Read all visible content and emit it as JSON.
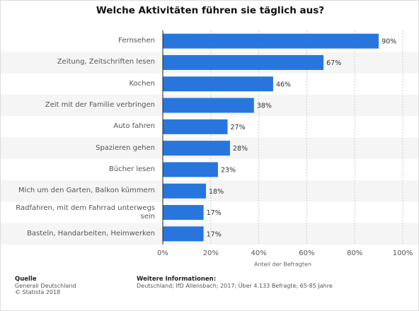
{
  "chart_data": {
    "type": "hbar",
    "title": "Welche Aktivitäten führen sie täglich aus?",
    "categories": [
      "Fernsehen",
      "Zeitung, Zeitschriften lesen",
      "Kochen",
      "Zeit mit der Familie verbringen",
      "Auto fahren",
      "Spazieren gehen",
      "Bücher lesen",
      "Mich um den Garten, Balkon kümmern",
      "Radfahren, mit dem Fahrrad unterwegs sein",
      "Basteln, Handarbeiten, Heimwerken"
    ],
    "values": [
      90,
      67,
      46,
      38,
      27,
      28,
      23,
      18,
      17,
      17
    ],
    "value_labels": [
      "90%",
      "67%",
      "46%",
      "38%",
      "27%",
      "28%",
      "23%",
      "18%",
      "17%",
      "17%"
    ],
    "color": "#2876dd",
    "xlim": [
      0,
      100
    ],
    "xticks": [
      {
        "value": 0,
        "label": "0%"
      },
      {
        "value": 20,
        "label": "20%"
      },
      {
        "value": 40,
        "label": "40%"
      },
      {
        "value": 60,
        "label": "60%"
      },
      {
        "value": 80,
        "label": "80%"
      },
      {
        "value": 100,
        "label": "100%"
      }
    ],
    "xlabel": "Anteil der Befragten",
    "grid": true
  },
  "footer": {
    "source_heading": "Quelle",
    "source_lines": [
      "Generali Deutschland",
      "© Statista 2018"
    ],
    "info_heading": "Weitere Informationen:",
    "info_lines": [
      "Deutschland; IfD Allensbach; 2017; Über 4.133 Befragte; 65-85 Jahre"
    ]
  }
}
